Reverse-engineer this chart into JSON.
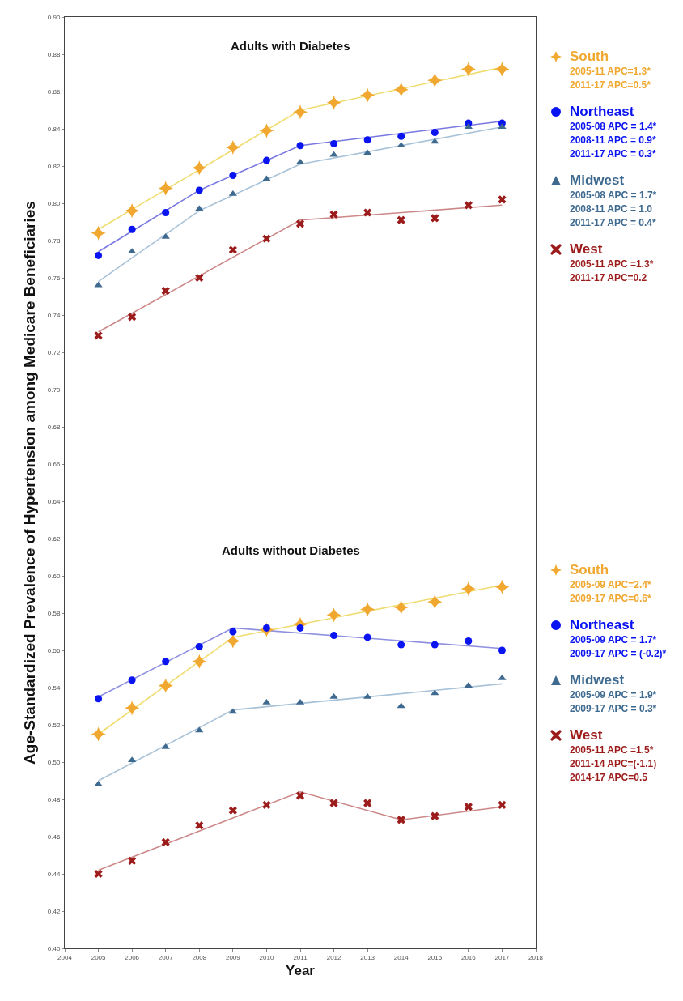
{
  "chart_data": {
    "type": "scatter",
    "xlabel": "Year",
    "ylabel": "Age-Standardized Prevalence of Hypertension among Medicare Beneficiaries",
    "x": [
      2005,
      2006,
      2007,
      2008,
      2009,
      2010,
      2011,
      2012,
      2013,
      2014,
      2015,
      2016,
      2017
    ],
    "xlim": [
      2004,
      2018
    ],
    "xticks": [
      2004,
      2005,
      2006,
      2007,
      2008,
      2009,
      2010,
      2011,
      2012,
      2013,
      2014,
      2015,
      2016,
      2017,
      2018
    ],
    "ylim": [
      0.4,
      0.9
    ],
    "yticks": [
      {
        "value": 0.4,
        "label": "0.40"
      },
      {
        "value": 0.42,
        "label": "0.42"
      },
      {
        "value": 0.44,
        "label": "0.44"
      },
      {
        "value": 0.46,
        "label": "0.46"
      },
      {
        "value": 0.48,
        "label": "0.48"
      },
      {
        "value": 0.5,
        "label": "0.50"
      },
      {
        "value": 0.52,
        "label": "0.52"
      },
      {
        "value": 0.54,
        "label": "0.54"
      },
      {
        "value": 0.56,
        "label": "0.56"
      },
      {
        "value": 0.58,
        "label": "0.58"
      },
      {
        "value": 0.6,
        "label": "0.60"
      },
      {
        "value": 0.62,
        "label": "0.62"
      },
      {
        "value": 0.64,
        "label": "0.64"
      },
      {
        "value": 0.66,
        "label": "0.66"
      },
      {
        "value": 0.68,
        "label": "0.68"
      },
      {
        "value": 0.7,
        "label": "0.70"
      },
      {
        "value": 0.72,
        "label": "0.72"
      },
      {
        "value": 0.74,
        "label": "0.74"
      },
      {
        "value": 0.76,
        "label": "0.76"
      },
      {
        "value": 0.78,
        "label": "0.78"
      },
      {
        "value": 0.8,
        "label": "0.80"
      },
      {
        "value": 0.82,
        "label": "0.82"
      },
      {
        "value": 0.84,
        "label": "0.84"
      },
      {
        "value": 0.86,
        "label": "0.86"
      },
      {
        "value": 0.88,
        "label": "0.88"
      },
      {
        "value": 0.9,
        "label": "0.90"
      }
    ],
    "grid": false,
    "legend": "right",
    "series": [
      {
        "name": "South",
        "color": "#f0a830",
        "marker": "star",
        "values": [
          0.784,
          0.796,
          0.808,
          0.819,
          0.83,
          0.839,
          0.849,
          0.854,
          0.858,
          0.861,
          0.866,
          0.872,
          0.872
        ]
      },
      {
        "name": "Northeast",
        "color": "#0a14f0",
        "marker": "circle",
        "values": [
          0.772,
          0.786,
          0.795,
          0.807,
          0.815,
          0.823,
          0.831,
          0.832,
          0.834,
          0.836,
          0.838,
          0.843,
          0.843
        ]
      },
      {
        "name": "Midwest",
        "color": "#3f6a90",
        "marker": "triangle",
        "values": [
          0.756,
          0.774,
          0.782,
          0.797,
          0.805,
          0.813,
          0.822,
          0.826,
          0.827,
          0.831,
          0.833,
          0.841,
          0.841
        ]
      },
      {
        "name": "West",
        "color": "#9c1c1c",
        "marker": "cross",
        "values": [
          0.729,
          0.739,
          0.753,
          0.76,
          0.775,
          0.781,
          0.789,
          0.794,
          0.795,
          0.791,
          0.792,
          0.799,
          0.802
        ]
      },
      {
        "name": "South",
        "color": "#f0a830",
        "marker": "star",
        "values": [
          0.515,
          0.529,
          0.541,
          0.554,
          0.565,
          0.571,
          0.574,
          0.579,
          0.582,
          0.583,
          0.586,
          0.593,
          0.594
        ]
      },
      {
        "name": "Northeast",
        "color": "#0a14f0",
        "marker": "circle",
        "values": [
          0.534,
          0.544,
          0.554,
          0.562,
          0.57,
          0.572,
          0.572,
          0.568,
          0.567,
          0.563,
          0.563,
          0.565,
          0.56
        ]
      },
      {
        "name": "Midwest",
        "color": "#3f6a90",
        "marker": "triangle",
        "values": [
          0.488,
          0.501,
          0.508,
          0.517,
          0.527,
          0.532,
          0.532,
          0.535,
          0.535,
          0.53,
          0.537,
          0.541,
          0.545
        ]
      },
      {
        "name": "West",
        "color": "#9c1c1c",
        "marker": "cross",
        "values": [
          0.44,
          0.447,
          0.457,
          0.466,
          0.474,
          0.477,
          0.482,
          0.478,
          0.478,
          0.469,
          0.471,
          0.476,
          0.477
        ]
      },
      {
        "type": "line",
        "marker": "none",
        "color": "#f0dc70",
        "x": [
          2005,
          2011,
          2017
        ],
        "values": [
          0.786,
          0.85,
          0.873
        ]
      },
      {
        "type": "line",
        "marker": "none",
        "color": "#7878e0",
        "x": [
          2005,
          2008,
          2011,
          2017
        ],
        "values": [
          0.774,
          0.807,
          0.831,
          0.844
        ]
      },
      {
        "type": "line",
        "marker": "none",
        "color": "#a8c2d8",
        "x": [
          2005,
          2008,
          2011,
          2017
        ],
        "values": [
          0.758,
          0.796,
          0.821,
          0.841
        ]
      },
      {
        "type": "line",
        "marker": "none",
        "color": "#cc8888",
        "x": [
          2005,
          2011,
          2017
        ],
        "values": [
          0.731,
          0.791,
          0.799
        ]
      },
      {
        "type": "line",
        "marker": "none",
        "color": "#f0dc70",
        "x": [
          2005,
          2009,
          2017
        ],
        "values": [
          0.515,
          0.567,
          0.595
        ]
      },
      {
        "type": "line",
        "marker": "none",
        "color": "#9090e0",
        "x": [
          2005,
          2009,
          2017
        ],
        "values": [
          0.535,
          0.572,
          0.561
        ]
      },
      {
        "type": "line",
        "marker": "none",
        "color": "#a8c2d8",
        "x": [
          2005,
          2009,
          2017
        ],
        "values": [
          0.49,
          0.528,
          0.542
        ]
      },
      {
        "type": "line",
        "marker": "none",
        "color": "#cc8888",
        "x": [
          2005,
          2011,
          2014,
          2017
        ],
        "values": [
          0.442,
          0.484,
          0.469,
          0.476
        ]
      }
    ],
    "annotations": [
      "Adults with Diabetes",
      "2005-11 APC=1.3*\n2011-17 APC=0.5*",
      "2005-08 APC = 1.4*\n2008-11 APC = 0.9*\n2011-17 APC = 0.3*",
      "2005-08 APC = 1.7*\n2008-11 APC = 1.0\n2011-17 APC = 0.4*",
      "2005-11 APC =1.3*\n2011-17 APC=0.2",
      "Adults without Diabetes",
      "2005-09 APC=2.4*\n2009-17 APC=0.6*",
      "2005-09 APC = 1.7*\n2009-17 APC = (-0.2)*",
      "2005-09 APC = 1.9*\n2009-17 APC = 0.3*",
      "2005-11 APC =1.5*\n2011-14 APC=(-1.1)\n2014-17 APC=0.5"
    ]
  }
}
